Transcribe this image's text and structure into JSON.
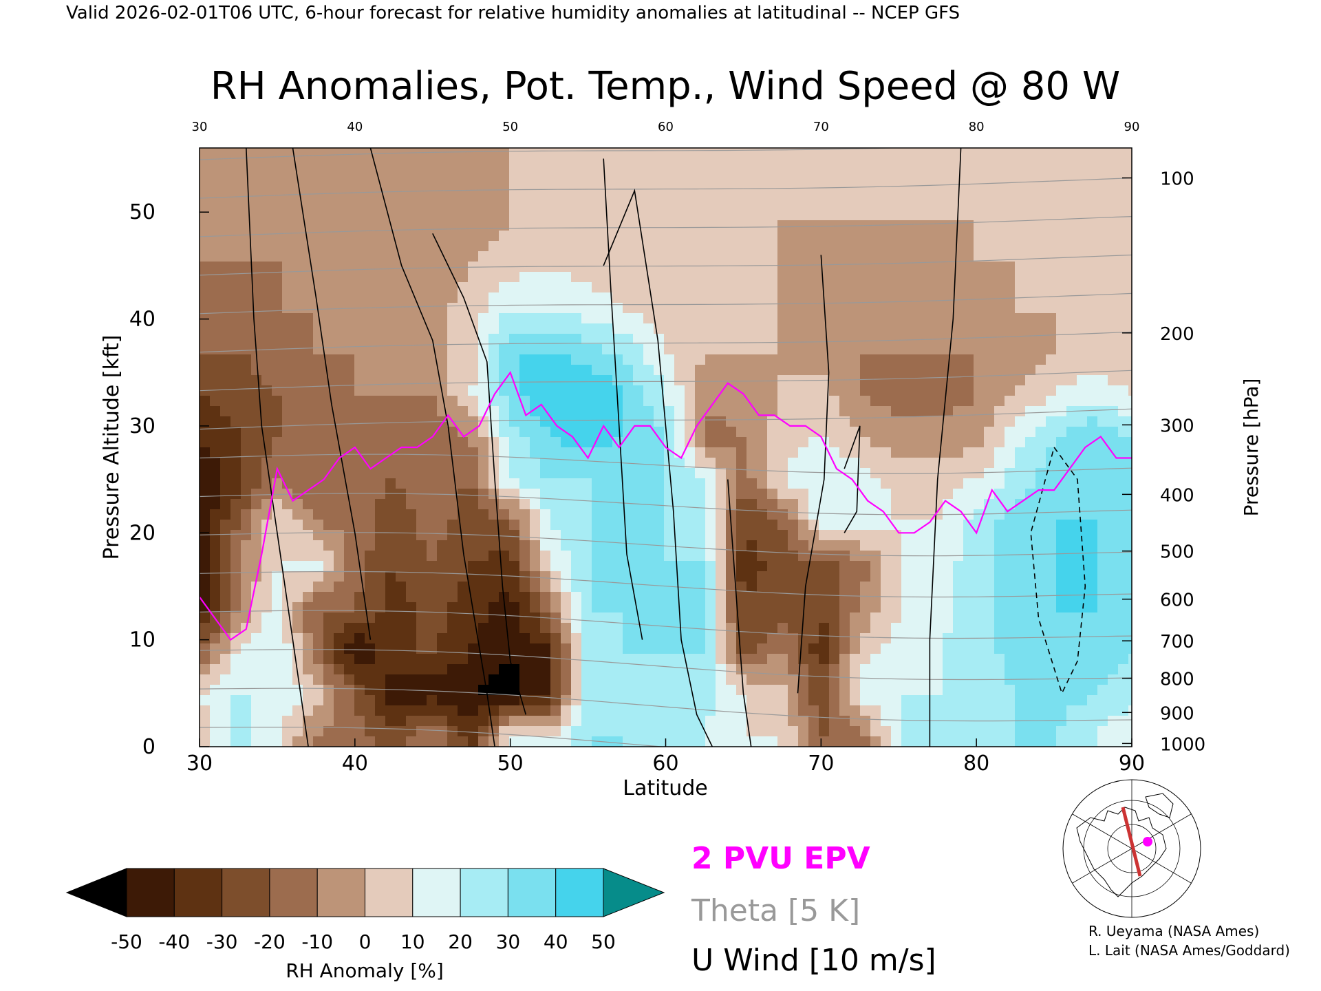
{
  "header": {
    "caption": "Valid 2026-02-01T06 UTC, 6-hour forecast for relative humidity anomalies at latitudinal -- NCEP GFS"
  },
  "chart_data": {
    "type": "heatmap",
    "title": "RH Anomalies, Pot. Temp., Wind Speed @ 80 W",
    "xlabel": "Latitude",
    "ylabel": "Pressure Altitude [kft]",
    "ylabel_right": "Pressure [hPa]",
    "x_range": [
      30,
      90
    ],
    "y_range": [
      0,
      56
    ],
    "x_ticks": [
      "30",
      "40",
      "50",
      "60",
      "70",
      "80",
      "90"
    ],
    "y_ticks": [
      "0",
      "10",
      "20",
      "30",
      "40",
      "50"
    ],
    "pressure_ticks": [
      {
        "label": "100",
        "kft": 53.2
      },
      {
        "label": "200",
        "kft": 38.7
      },
      {
        "label": "300",
        "kft": 30.1
      },
      {
        "label": "400",
        "kft": 23.6
      },
      {
        "label": "500",
        "kft": 18.3
      },
      {
        "label": "600",
        "kft": 13.8
      },
      {
        "label": "700",
        "kft": 9.9
      },
      {
        "label": "800",
        "kft": 6.4
      },
      {
        "label": "900",
        "kft": 3.2
      },
      {
        "label": "1000",
        "kft": 0.3
      }
    ],
    "rh_anomaly_grid": {
      "latitudes": [
        30,
        32.5,
        35,
        37.5,
        40,
        42.5,
        45,
        47.5,
        50,
        52.5,
        55,
        57.5,
        60,
        62.5,
        65,
        67.5,
        70,
        72.5,
        75,
        77.5,
        80,
        82.5,
        85,
        87.5,
        90
      ],
      "altitudes_kft": [
        1,
        5,
        9,
        13,
        17,
        21,
        25,
        29,
        33,
        37,
        41,
        45,
        49,
        53
      ],
      "values": [
        [
          5,
          25,
          10,
          -10,
          -15,
          -25,
          -10,
          -35,
          15,
          10,
          30,
          30,
          20,
          20,
          10,
          10,
          -20,
          -15,
          20,
          20,
          25,
          30,
          30,
          20,
          10
        ],
        [
          10,
          20,
          20,
          5,
          -20,
          -50,
          -45,
          -50,
          -55,
          -40,
          25,
          30,
          25,
          25,
          10,
          5,
          -30,
          15,
          20,
          20,
          20,
          30,
          35,
          30,
          25
        ],
        [
          -20,
          10,
          20,
          -15,
          -50,
          -30,
          -30,
          -40,
          -50,
          -40,
          25,
          30,
          30,
          30,
          -25,
          -10,
          -35,
          5,
          15,
          20,
          25,
          35,
          40,
          35,
          30
        ],
        [
          -45,
          -10,
          15,
          -20,
          -20,
          -35,
          -25,
          -35,
          -45,
          -15,
          30,
          30,
          30,
          30,
          -30,
          -25,
          -30,
          -10,
          10,
          15,
          25,
          35,
          40,
          40,
          35
        ],
        [
          -50,
          -10,
          10,
          15,
          -15,
          -30,
          -20,
          -30,
          -35,
          10,
          30,
          30,
          30,
          30,
          -35,
          -25,
          -25,
          -15,
          10,
          15,
          25,
          35,
          40,
          40,
          35
        ],
        [
          -50,
          -20,
          10,
          -10,
          -15,
          -25,
          -15,
          -25,
          -20,
          20,
          30,
          30,
          30,
          25,
          -30,
          -20,
          15,
          20,
          10,
          10,
          25,
          35,
          40,
          40,
          35
        ],
        [
          -50,
          -35,
          -10,
          -20,
          -15,
          -20,
          -15,
          -20,
          20,
          30,
          30,
          30,
          30,
          20,
          -15,
          10,
          20,
          15,
          5,
          5,
          10,
          25,
          35,
          40,
          35
        ],
        [
          -40,
          -30,
          -20,
          -15,
          -10,
          -15,
          -15,
          -10,
          25,
          40,
          45,
          40,
          30,
          -15,
          -10,
          5,
          10,
          0,
          -5,
          -5,
          -5,
          15,
          30,
          40,
          30
        ],
        [
          -30,
          -25,
          -20,
          -15,
          -10,
          -10,
          -10,
          10,
          35,
          50,
          50,
          40,
          20,
          -5,
          -5,
          0,
          5,
          -10,
          -15,
          -15,
          -10,
          0,
          10,
          15,
          10
        ],
        [
          -20,
          -20,
          -15,
          -10,
          -10,
          -5,
          -5,
          5,
          40,
          40,
          35,
          25,
          10,
          0,
          0,
          0,
          -5,
          -10,
          -10,
          -10,
          -10,
          -5,
          0,
          5,
          0
        ],
        [
          -15,
          -15,
          -10,
          -10,
          -5,
          -5,
          -5,
          5,
          20,
          20,
          15,
          10,
          5,
          0,
          0,
          0,
          -5,
          -5,
          -5,
          -5,
          -5,
          0,
          0,
          0,
          0
        ],
        [
          -10,
          -10,
          -10,
          -5,
          -5,
          -5,
          -5,
          0,
          5,
          10,
          5,
          5,
          0,
          0,
          0,
          0,
          -5,
          -5,
          -5,
          -5,
          0,
          0,
          0,
          0,
          0
        ],
        [
          -10,
          -10,
          -5,
          -5,
          -5,
          -5,
          -5,
          -5,
          0,
          5,
          5,
          0,
          0,
          0,
          0,
          0,
          0,
          0,
          0,
          0,
          0,
          5,
          5,
          5,
          5
        ],
        [
          -5,
          -5,
          -5,
          -5,
          -5,
          -5,
          -5,
          -5,
          0,
          0,
          0,
          0,
          0,
          0,
          0,
          0,
          0,
          0,
          0,
          0,
          0,
          5,
          5,
          5,
          5
        ]
      ]
    },
    "theta_isentropes_K": [
      260,
      270,
      280,
      290,
      300,
      310,
      320,
      330,
      340,
      350,
      360,
      370,
      380,
      390,
      400,
      410,
      420
    ],
    "epv_2pvu_line": {
      "lat": [
        30,
        31,
        32,
        33,
        34,
        35,
        36,
        37,
        38,
        39,
        40,
        41,
        42,
        43,
        44,
        45,
        46,
        47,
        48,
        49,
        50,
        51,
        52,
        53,
        54,
        55,
        56,
        57,
        58,
        59,
        60,
        61,
        62,
        63,
        64,
        65,
        66,
        67,
        68,
        69,
        70,
        71,
        72,
        73,
        74,
        75,
        76,
        77,
        78,
        79,
        80,
        81,
        82,
        83,
        84,
        85,
        86,
        87,
        88,
        89,
        90
      ],
      "kft": [
        14,
        12,
        10,
        11,
        18,
        26,
        23,
        24,
        25,
        27,
        28,
        26,
        27,
        28,
        28,
        29,
        31,
        29,
        30,
        33,
        35,
        31,
        32,
        30,
        29,
        27,
        30,
        28,
        30,
        30,
        28,
        27,
        30,
        32,
        34,
        33,
        31,
        31,
        30,
        30,
        29,
        26,
        25,
        23,
        22,
        20,
        20,
        21,
        23,
        22,
        20,
        24,
        22,
        23,
        24,
        24,
        26,
        28,
        29,
        27,
        27
      ]
    },
    "legend": {
      "epv": "2 PVU EPV",
      "theta": "Theta [5 K]",
      "uwind": "U Wind [10 m/s]"
    },
    "colorbar": {
      "label": "RH Anomaly [%]",
      "ticks": [
        "-50",
        "-40",
        "-30",
        "-20",
        "-10",
        "0",
        "10",
        "20",
        "30",
        "40",
        "50"
      ],
      "colors": [
        "#000000",
        "#3d1a06",
        "#5e3212",
        "#7d4e2c",
        "#9c6c4e",
        "#bd9478",
        "#e4cbbb",
        "#dff5f5",
        "#a7ecf4",
        "#7ae0ef",
        "#45d3ec",
        "#1cbfe2",
        "#0898b8",
        "#068c8a"
      ]
    }
  },
  "credits": {
    "line1": "R. Ueyama (NASA Ames)",
    "line2": "L. Lait (NASA Ames/Goddard)"
  },
  "colors": {
    "epv": "#ff00ff",
    "theta": "#999999",
    "uwind": "#000000",
    "section_line": "#cc3333"
  }
}
